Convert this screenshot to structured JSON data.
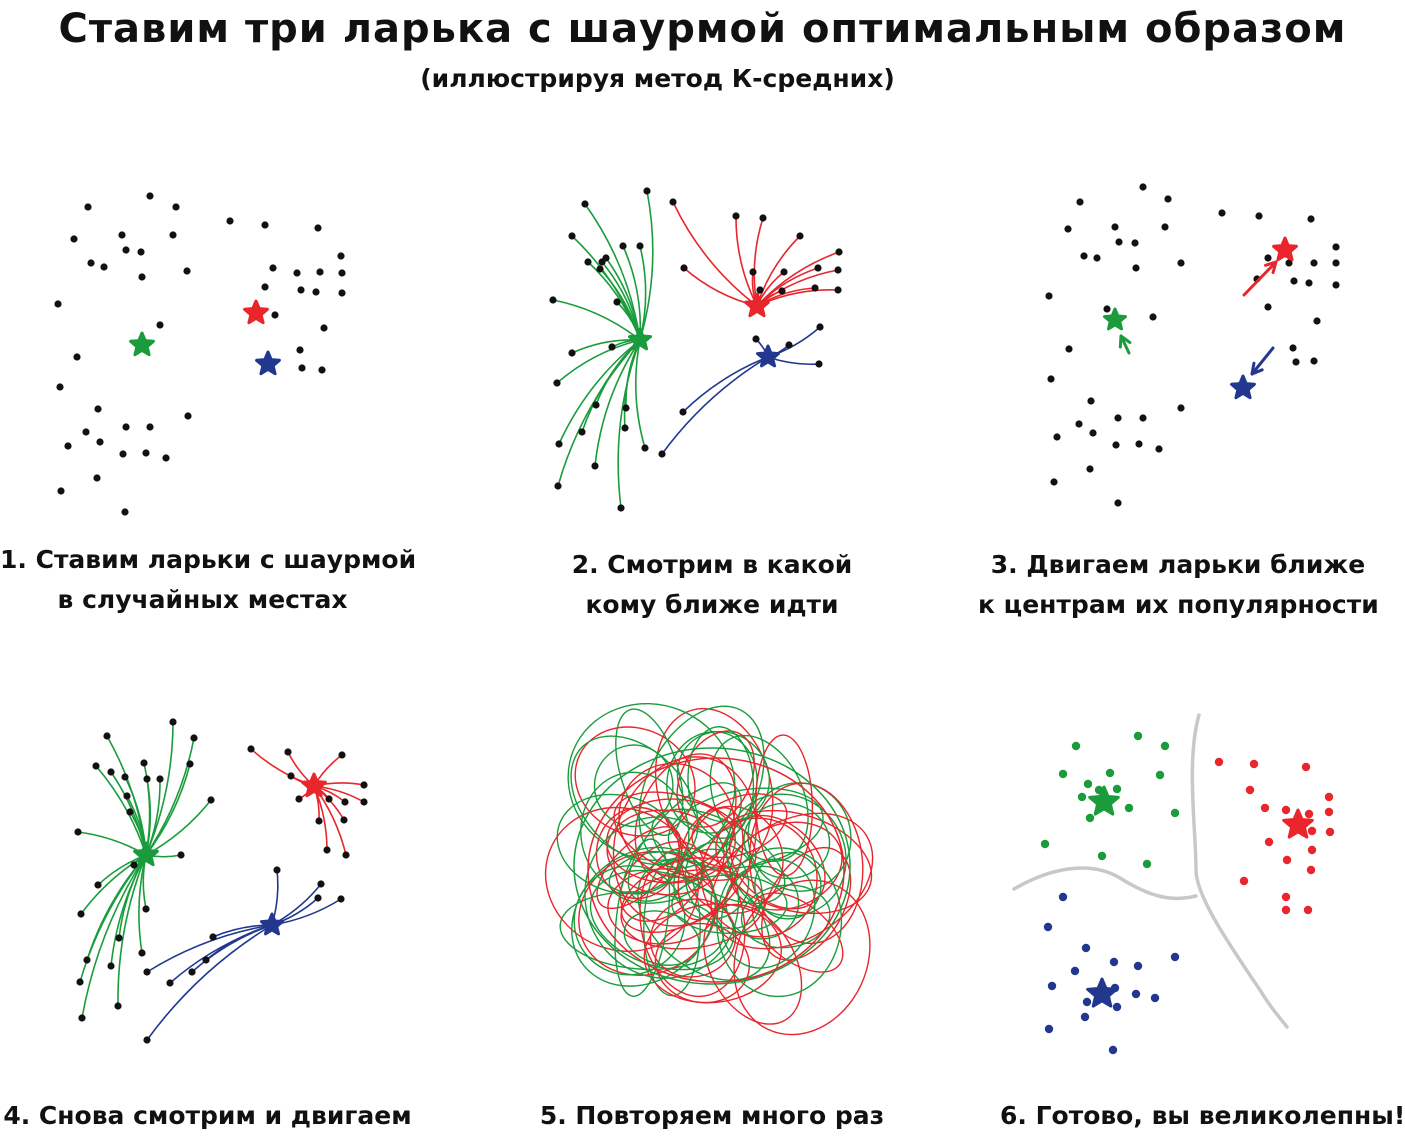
{
  "title": "Ставим три ларька с шаурмой оптимальным образом",
  "subtitle": "(иллюстрируя метод К-средних)",
  "colors": {
    "green": "#1a9c3c",
    "red": "#e8262b",
    "blue": "#22388f",
    "dot": "#111111",
    "divider": "#c8c8c8"
  },
  "steps": [
    {
      "line1": "1. Ставим ларьки с шаурмой",
      "line2": "в случайных местах"
    },
    {
      "line1": "2. Смотрим в какой",
      "line2": "кому ближе идти"
    },
    {
      "line1": "3. Двигаем ларьки ближе",
      "line2": "к центрам их популярности"
    },
    {
      "line1": "4. Снова смотрим и двигаем",
      "line2": ""
    },
    {
      "line1": "5. Повторяем много раз",
      "line2": ""
    },
    {
      "line1": "6. Готово, вы великолепны!",
      "line2": ""
    }
  ]
}
